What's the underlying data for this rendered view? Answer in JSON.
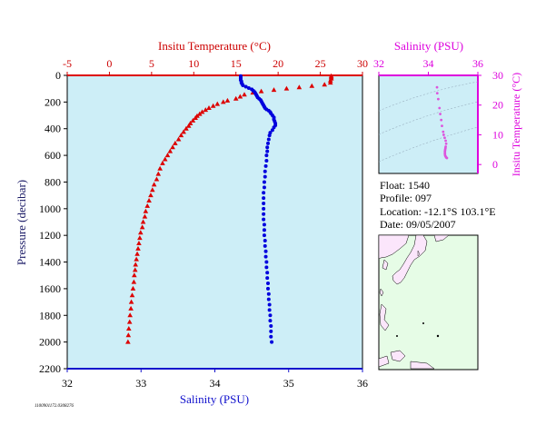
{
  "chart_data": [
    {
      "type": "scatter",
      "name": "profile",
      "title": "",
      "ylabel": "Pressure (decibar)",
      "ylim": [
        0,
        2200
      ],
      "y_reversed": true,
      "yticks": [
        0,
        200,
        400,
        600,
        800,
        1000,
        1200,
        1400,
        1600,
        1800,
        2000,
        2200
      ],
      "bottom_axis": {
        "label": "Salinity (PSU)",
        "range": [
          32,
          36
        ],
        "ticks": [
          32,
          33,
          34,
          35,
          36
        ],
        "color": "#1010cc"
      },
      "top_axis": {
        "label": "Insitu Temperature (°C)",
        "range": [
          -5,
          30
        ],
        "ticks": [
          -5,
          0,
          5,
          10,
          15,
          20,
          25,
          30
        ],
        "color": "#cc0000"
      },
      "background": "#cdeef7",
      "series": [
        {
          "name": "",
          "marker": "triangle",
          "color": "#dd0000",
          "axis": "top",
          "points": [
            [
              26.3,
              5
            ],
            [
              26.3,
              15
            ],
            [
              26.3,
              25
            ],
            [
              26.2,
              40
            ],
            [
              26.2,
              55
            ],
            [
              25.5,
              70
            ],
            [
              24.0,
              80
            ],
            [
              22.5,
              90
            ],
            [
              21.0,
              100
            ],
            [
              19.5,
              110
            ],
            [
              18.0,
              120
            ],
            [
              17.0,
              130
            ],
            [
              16.0,
              145
            ],
            [
              15.5,
              160
            ],
            [
              15.0,
              175
            ],
            [
              14.0,
              190
            ],
            [
              13.5,
              200
            ],
            [
              12.8,
              215
            ],
            [
              12.3,
              230
            ],
            [
              11.8,
              245
            ],
            [
              11.4,
              260
            ],
            [
              11.0,
              275
            ],
            [
              10.7,
              290
            ],
            [
              10.4,
              305
            ],
            [
              10.2,
              320
            ],
            [
              9.9,
              340
            ],
            [
              9.6,
              360
            ],
            [
              9.4,
              380
            ],
            [
              9.1,
              400
            ],
            [
              8.8,
              425
            ],
            [
              8.5,
              450
            ],
            [
              8.2,
              480
            ],
            [
              7.8,
              510
            ],
            [
              7.5,
              540
            ],
            [
              7.2,
              570
            ],
            [
              6.9,
              600
            ],
            [
              6.6,
              630
            ],
            [
              6.3,
              660
            ],
            [
              6.0,
              700
            ],
            [
              5.8,
              740
            ],
            [
              5.6,
              780
            ],
            [
              5.3,
              820
            ],
            [
              5.1,
              860
            ],
            [
              4.9,
              900
            ],
            [
              4.7,
              940
            ],
            [
              4.5,
              980
            ],
            [
              4.3,
              1020
            ],
            [
              4.2,
              1060
            ],
            [
              4.0,
              1100
            ],
            [
              3.9,
              1140
            ],
            [
              3.7,
              1180
            ],
            [
              3.6,
              1220
            ],
            [
              3.5,
              1260
            ],
            [
              3.4,
              1300
            ],
            [
              3.3,
              1340
            ],
            [
              3.2,
              1380
            ],
            [
              3.1,
              1420
            ],
            [
              3.05,
              1460
            ],
            [
              2.95,
              1500
            ],
            [
              2.9,
              1550
            ],
            [
              2.8,
              1600
            ],
            [
              2.7,
              1650
            ],
            [
              2.6,
              1700
            ],
            [
              2.55,
              1750
            ],
            [
              2.45,
              1800
            ],
            [
              2.4,
              1850
            ],
            [
              2.3,
              1900
            ],
            [
              2.25,
              1950
            ],
            [
              2.2,
              2000
            ]
          ]
        },
        {
          "name": "",
          "marker": "circle",
          "color": "#0000dd",
          "axis": "bottom",
          "points": [
            [
              34.35,
              5
            ],
            [
              34.35,
              15
            ],
            [
              34.35,
              25
            ],
            [
              34.35,
              35
            ],
            [
              34.36,
              45
            ],
            [
              34.36,
              55
            ],
            [
              34.37,
              65
            ],
            [
              34.38,
              75
            ],
            [
              34.42,
              85
            ],
            [
              34.46,
              95
            ],
            [
              34.5,
              105
            ],
            [
              34.52,
              115
            ],
            [
              34.54,
              125
            ],
            [
              34.55,
              135
            ],
            [
              34.56,
              145
            ],
            [
              34.57,
              155
            ],
            [
              34.58,
              165
            ],
            [
              34.6,
              175
            ],
            [
              34.62,
              185
            ],
            [
              34.63,
              195
            ],
            [
              34.64,
              205
            ],
            [
              34.65,
              215
            ],
            [
              34.66,
              225
            ],
            [
              34.67,
              235
            ],
            [
              34.68,
              245
            ],
            [
              34.7,
              255
            ],
            [
              34.73,
              265
            ],
            [
              34.75,
              275
            ],
            [
              34.76,
              285
            ],
            [
              34.78,
              300
            ],
            [
              34.8,
              315
            ],
            [
              34.8,
              330
            ],
            [
              34.81,
              345
            ],
            [
              34.82,
              360
            ],
            [
              34.82,
              375
            ],
            [
              34.8,
              390
            ],
            [
              34.78,
              410
            ],
            [
              34.75,
              430
            ],
            [
              34.74,
              450
            ],
            [
              34.73,
              480
            ],
            [
              34.72,
              510
            ],
            [
              34.71,
              540
            ],
            [
              34.71,
              570
            ],
            [
              34.7,
              600
            ],
            [
              34.7,
              640
            ],
            [
              34.69,
              680
            ],
            [
              34.68,
              720
            ],
            [
              34.68,
              760
            ],
            [
              34.67,
              800
            ],
            [
              34.67,
              840
            ],
            [
              34.66,
              880
            ],
            [
              34.66,
              920
            ],
            [
              34.66,
              960
            ],
            [
              34.66,
              1000
            ],
            [
              34.66,
              1040
            ],
            [
              34.66,
              1080
            ],
            [
              34.67,
              1120
            ],
            [
              34.67,
              1160
            ],
            [
              34.67,
              1200
            ],
            [
              34.68,
              1240
            ],
            [
              34.68,
              1280
            ],
            [
              34.69,
              1320
            ],
            [
              34.69,
              1360
            ],
            [
              34.7,
              1400
            ],
            [
              34.7,
              1440
            ],
            [
              34.71,
              1480
            ],
            [
              34.71,
              1520
            ],
            [
              34.72,
              1560
            ],
            [
              34.72,
              1600
            ],
            [
              34.73,
              1640
            ],
            [
              34.73,
              1680
            ],
            [
              34.74,
              1720
            ],
            [
              34.74,
              1760
            ],
            [
              34.75,
              1800
            ],
            [
              34.75,
              1840
            ],
            [
              34.76,
              1880
            ],
            [
              34.76,
              1920
            ],
            [
              34.76,
              1960
            ],
            [
              34.77,
              2000
            ]
          ]
        }
      ]
    },
    {
      "type": "scatter",
      "name": "ts-diagram",
      "xlabel": "Salinity (PSU)",
      "ylabel": "Insitu Temperature (°C)",
      "xlim": [
        32,
        36
      ],
      "ylim": [
        -3,
        30
      ],
      "xticks": [
        32,
        34,
        36
      ],
      "yticks": [
        0,
        10,
        20,
        30
      ],
      "background": "#cdeef7",
      "color": "#dd00dd",
      "series": [
        {
          "name": "",
          "color": "#dd55dd",
          "points": [
            [
              34.35,
              26
            ],
            [
              34.36,
              24
            ],
            [
              34.4,
              22
            ],
            [
              34.45,
              19
            ],
            [
              34.48,
              17
            ],
            [
              34.52,
              15
            ],
            [
              34.55,
              13
            ],
            [
              34.6,
              11
            ],
            [
              34.62,
              10
            ],
            [
              34.66,
              9
            ],
            [
              34.7,
              8
            ],
            [
              34.72,
              7
            ],
            [
              34.7,
              6
            ],
            [
              34.69,
              5.5
            ],
            [
              34.68,
              5
            ],
            [
              34.67,
              4.5
            ],
            [
              34.67,
              4
            ],
            [
              34.67,
              3.5
            ],
            [
              34.68,
              3
            ],
            [
              34.7,
              2.7
            ],
            [
              34.72,
              2.4
            ],
            [
              34.75,
              2.2
            ]
          ]
        }
      ]
    }
  ],
  "info": {
    "float": "Float:  1540",
    "profile": "Profile:  097",
    "location": "Location:  -12.1°S  103.1°E",
    "date": "Date:  09/05/2007"
  },
  "map": {
    "ocean_color": "#e6fce6",
    "land_color": "#fbe6fb",
    "float_position": [
      103.1,
      -12.1
    ]
  },
  "footer": "1100901172.0308276"
}
